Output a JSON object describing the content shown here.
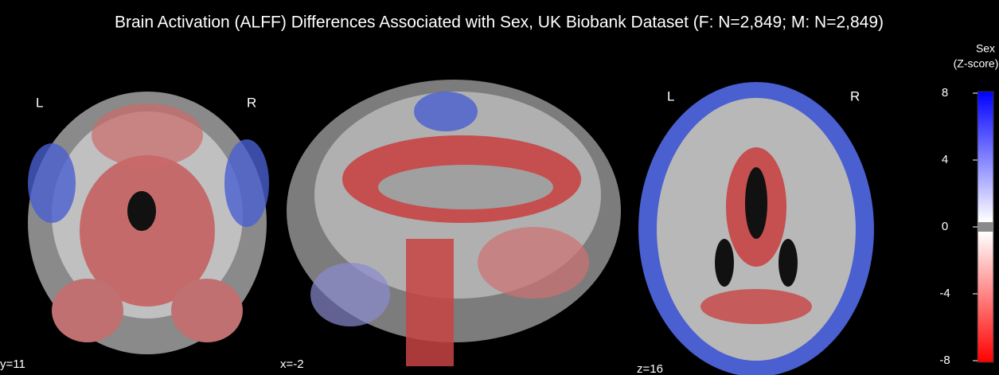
{
  "title": "Brain Activation (ALFF) Differences Associated with Sex, UK Biobank Dataset (F: N=2,849; M: N=2,849)",
  "colorbar": {
    "label_lines": [
      "Sex",
      "(Z-score)"
    ],
    "range": [
      -8,
      8
    ],
    "ticks": [
      8,
      4,
      0,
      -4,
      -8
    ]
  },
  "slices": [
    {
      "label": "y=11",
      "left": "L",
      "right": "R"
    },
    {
      "label": "x=-2"
    },
    {
      "label": "z=16",
      "left": "L",
      "right": "R"
    }
  ]
}
